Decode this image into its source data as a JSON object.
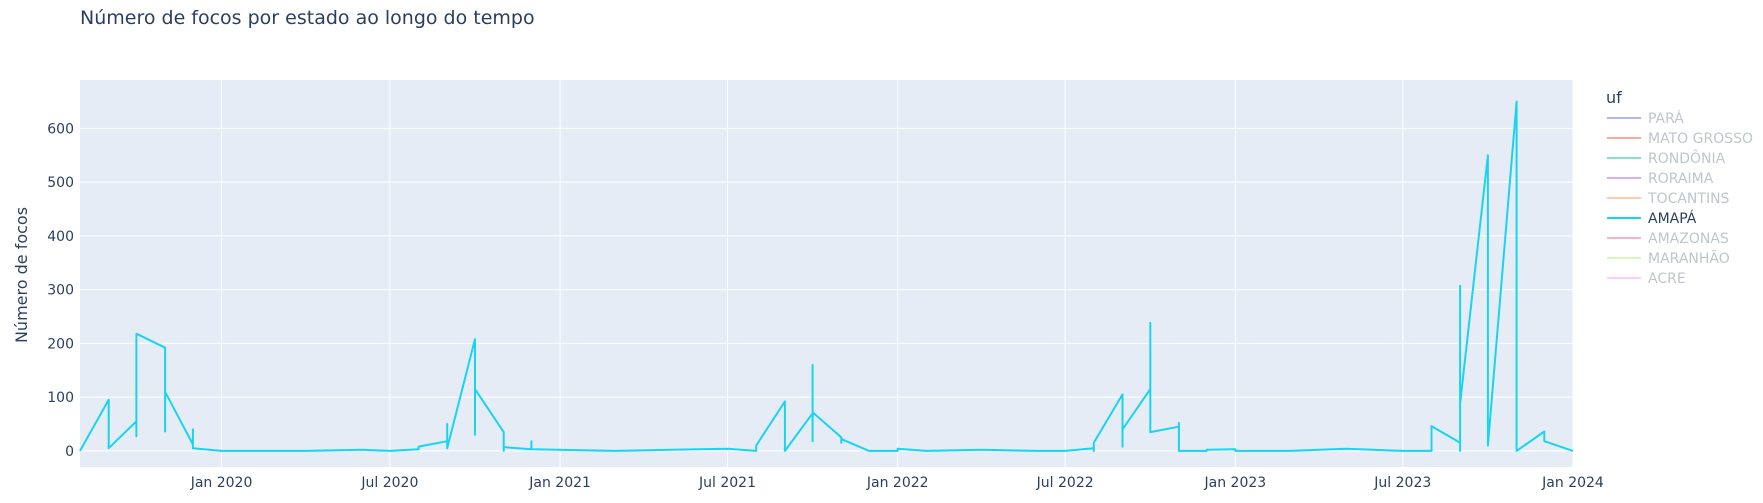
{
  "chart_data": {
    "type": "line",
    "title": "Número de focos por estado ao longo do tempo",
    "xlabel": "",
    "ylabel": "Número de focos",
    "x_range": [
      "2019-08-01",
      "2024-01-01"
    ],
    "ylim": [
      -30,
      690
    ],
    "x_ticks": [
      {
        "date": "2020-01-01",
        "label": "Jan 2020"
      },
      {
        "date": "2020-07-01",
        "label": "Jul 2020"
      },
      {
        "date": "2021-01-01",
        "label": "Jan 2021"
      },
      {
        "date": "2021-07-01",
        "label": "Jul 2021"
      },
      {
        "date": "2022-01-01",
        "label": "Jan 2022"
      },
      {
        "date": "2022-07-01",
        "label": "Jul 2022"
      },
      {
        "date": "2023-01-01",
        "label": "Jan 2023"
      },
      {
        "date": "2023-07-01",
        "label": "Jul 2023"
      },
      {
        "date": "2024-01-01",
        "label": "Jan 2024"
      }
    ],
    "y_ticks": [
      0,
      100,
      200,
      300,
      400,
      500,
      600
    ],
    "grid": true,
    "background_color": "#e5ecf6",
    "legend": {
      "title": "uf",
      "placement": "right",
      "entries": [
        {
          "label": "PARÁ",
          "color": "#636efa",
          "visible": false
        },
        {
          "label": "MATO GROSSO",
          "color": "#ef553b",
          "visible": false
        },
        {
          "label": "RONDÔNIA",
          "color": "#00cc96",
          "visible": false
        },
        {
          "label": "RORAIMA",
          "color": "#ab63fa",
          "visible": false
        },
        {
          "label": "TOCANTINS",
          "color": "#ffa15a",
          "visible": false
        },
        {
          "label": "AMAPÁ",
          "color": "#19d3f3",
          "visible": true
        },
        {
          "label": "AMAZONAS",
          "color": "#ff6692",
          "visible": false
        },
        {
          "label": "MARANHÃO",
          "color": "#b6e880",
          "visible": false
        },
        {
          "label": "ACRE",
          "color": "#ff97ff",
          "visible": false
        }
      ]
    },
    "series": [
      {
        "name": "AMAPÁ",
        "color": "#19d3f3",
        "points": [
          [
            "2019-08-01",
            0
          ],
          [
            "2019-09-01",
            95
          ],
          [
            "2019-09-01",
            5
          ],
          [
            "2019-10-01",
            55
          ],
          [
            "2019-10-01",
            27
          ],
          [
            "2019-10-01",
            218
          ],
          [
            "2019-11-01",
            192
          ],
          [
            "2019-11-01",
            36
          ],
          [
            "2019-11-01",
            110
          ],
          [
            "2019-12-01",
            12
          ],
          [
            "2019-12-01",
            40
          ],
          [
            "2019-12-01",
            5
          ],
          [
            "2020-01-01",
            0
          ],
          [
            "2020-04-01",
            0
          ],
          [
            "2020-06-01",
            2
          ],
          [
            "2020-07-01",
            0
          ],
          [
            "2020-08-01",
            3
          ],
          [
            "2020-08-01",
            8
          ],
          [
            "2020-09-01",
            18
          ],
          [
            "2020-09-01",
            50
          ],
          [
            "2020-09-01",
            5
          ],
          [
            "2020-10-01",
            208
          ],
          [
            "2020-10-01",
            30
          ],
          [
            "2020-10-01",
            115
          ],
          [
            "2020-11-01",
            35
          ],
          [
            "2020-11-01",
            0
          ],
          [
            "2020-11-01",
            7
          ],
          [
            "2020-12-01",
            3
          ],
          [
            "2020-12-01",
            18
          ],
          [
            "2020-12-01",
            3
          ],
          [
            "2021-03-01",
            0
          ],
          [
            "2021-05-01",
            2
          ],
          [
            "2021-07-01",
            4
          ],
          [
            "2021-08-01",
            0
          ],
          [
            "2021-08-01",
            10
          ],
          [
            "2021-09-01",
            92
          ],
          [
            "2021-09-01",
            0
          ],
          [
            "2021-10-01",
            70
          ],
          [
            "2021-10-01",
            160
          ],
          [
            "2021-10-01",
            18
          ],
          [
            "2021-10-01",
            72
          ],
          [
            "2021-11-01",
            25
          ],
          [
            "2021-11-01",
            15
          ],
          [
            "2021-11-01",
            22
          ],
          [
            "2021-12-01",
            0
          ],
          [
            "2022-01-01",
            0
          ],
          [
            "2022-01-01",
            4
          ],
          [
            "2022-02-01",
            0
          ],
          [
            "2022-04-01",
            2
          ],
          [
            "2022-06-01",
            0
          ],
          [
            "2022-07-01",
            0
          ],
          [
            "2022-08-01",
            5
          ],
          [
            "2022-08-01",
            0
          ],
          [
            "2022-08-01",
            15
          ],
          [
            "2022-09-01",
            105
          ],
          [
            "2022-09-01",
            8
          ],
          [
            "2022-09-01",
            40
          ],
          [
            "2022-10-01",
            115
          ],
          [
            "2022-10-01",
            238
          ],
          [
            "2022-10-01",
            35
          ],
          [
            "2022-11-01",
            45
          ],
          [
            "2022-11-01",
            52
          ],
          [
            "2022-11-01",
            0
          ],
          [
            "2022-12-01",
            0
          ],
          [
            "2022-12-01",
            2
          ],
          [
            "2023-01-01",
            3
          ],
          [
            "2023-01-01",
            0
          ],
          [
            "2023-03-01",
            0
          ],
          [
            "2023-05-01",
            4
          ],
          [
            "2023-07-01",
            0
          ],
          [
            "2023-08-01",
            0
          ],
          [
            "2023-08-01",
            46
          ],
          [
            "2023-09-01",
            15
          ],
          [
            "2023-09-01",
            0
          ],
          [
            "2023-09-01",
            307
          ],
          [
            "2023-09-01",
            88
          ],
          [
            "2023-10-01",
            550
          ],
          [
            "2023-10-01",
            10
          ],
          [
            "2023-11-01",
            650
          ],
          [
            "2023-11-01",
            0
          ],
          [
            "2023-12-01",
            36
          ],
          [
            "2023-12-01",
            18
          ],
          [
            "2024-01-01",
            0
          ]
        ]
      }
    ]
  }
}
